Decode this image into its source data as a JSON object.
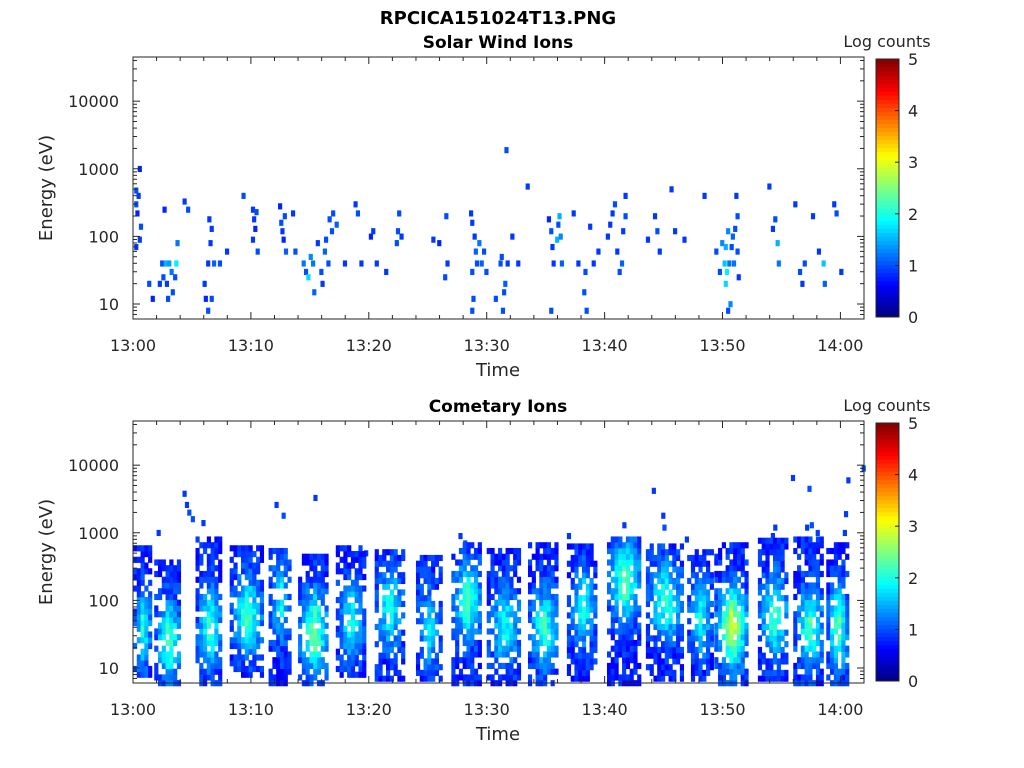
{
  "figure_title": "RPCICA151024T13.PNG",
  "colormap": "jet",
  "chart_data": [
    {
      "type": "heatmap",
      "title": "Solar Wind Ions",
      "xlabel": "Time",
      "ylabel": "Energy (eV)",
      "yscale": "log",
      "xlim": [
        "13:00",
        "14:02"
      ],
      "ylim": [
        6,
        45000
      ],
      "xticks": [
        "13:00",
        "13:10",
        "13:20",
        "13:30",
        "13:40",
        "13:50",
        "14:00"
      ],
      "yticks": [
        "10",
        "100",
        "1000",
        "10000"
      ],
      "colorbar": {
        "label": "Log counts",
        "range": [
          0,
          5
        ],
        "ticks": [
          "0",
          "1",
          "2",
          "3",
          "4",
          "5"
        ]
      },
      "cell_minutes": 0.32,
      "cells": [
        [
          0.1,
          480,
          1.0
        ],
        [
          0.1,
          300,
          1.0
        ],
        [
          0.2,
          220,
          0.8
        ],
        [
          0.3,
          400,
          0.9
        ],
        [
          0.4,
          1000,
          0.8
        ],
        [
          0.5,
          140,
          1.0
        ],
        [
          0.4,
          90,
          0.9
        ],
        [
          0.1,
          70,
          0.9
        ],
        [
          1.2,
          20,
          1.0
        ],
        [
          1.5,
          12,
          0.8
        ],
        [
          2.1,
          20,
          0.9
        ],
        [
          2.3,
          40,
          1.0
        ],
        [
          2.4,
          25,
          1.0
        ],
        [
          2.6,
          40,
          1.5
        ],
        [
          2.7,
          20,
          0.9
        ],
        [
          2.9,
          40,
          1.4
        ],
        [
          3.1,
          30,
          1.2
        ],
        [
          3.2,
          15,
          1.0
        ],
        [
          3.5,
          40,
          1.8
        ],
        [
          3.6,
          80,
          1.2
        ],
        [
          3.4,
          25,
          1.0
        ],
        [
          4.2,
          330,
          0.9
        ],
        [
          4.5,
          250,
          1.0
        ],
        [
          2.5,
          250,
          0.8
        ],
        [
          2.8,
          12,
          1.0
        ],
        [
          5.9,
          20,
          0.9
        ],
        [
          6.0,
          12,
          0.8
        ],
        [
          6.2,
          8,
          1.0
        ],
        [
          6.2,
          40,
          0.9
        ],
        [
          6.4,
          80,
          0.9
        ],
        [
          6.5,
          130,
          0.9
        ],
        [
          6.3,
          180,
          0.9
        ],
        [
          6.5,
          12,
          1.0
        ],
        [
          6.7,
          40,
          1.1
        ],
        [
          7.2,
          40,
          1.0
        ],
        [
          7.8,
          60,
          0.9
        ],
        [
          9.2,
          400,
          1.0
        ],
        [
          10.0,
          250,
          0.9
        ],
        [
          10.2,
          130,
          0.8
        ],
        [
          10.1,
          180,
          0.9
        ],
        [
          10.3,
          230,
          1.0
        ],
        [
          10.4,
          60,
          1.0
        ],
        [
          10.0,
          90,
          0.9
        ],
        [
          12.3,
          280,
          0.8
        ],
        [
          12.4,
          160,
          1.0
        ],
        [
          12.5,
          120,
          0.9
        ],
        [
          12.6,
          90,
          0.8
        ],
        [
          12.7,
          200,
          1.0
        ],
        [
          12.8,
          60,
          1.1
        ],
        [
          13.4,
          220,
          0.9
        ],
        [
          13.6,
          60,
          1.0
        ],
        [
          14.3,
          40,
          1.2
        ],
        [
          14.5,
          30,
          1.0
        ],
        [
          14.7,
          25,
          1.7
        ],
        [
          14.9,
          50,
          1.3
        ],
        [
          15.1,
          40,
          1.2
        ],
        [
          15.2,
          15,
          1.1
        ],
        [
          15.5,
          80,
          0.9
        ],
        [
          15.8,
          30,
          1.0
        ],
        [
          15.9,
          20,
          0.9
        ],
        [
          16.1,
          60,
          1.1
        ],
        [
          16.2,
          90,
          1.0
        ],
        [
          16.4,
          40,
          1.0
        ],
        [
          16.5,
          180,
          1.0
        ],
        [
          16.8,
          220,
          1.0
        ],
        [
          16.7,
          120,
          1.0
        ],
        [
          17.1,
          150,
          1.1
        ],
        [
          17.8,
          40,
          0.9
        ],
        [
          18.7,
          300,
          0.9
        ],
        [
          18.9,
          220,
          1.0
        ],
        [
          19.2,
          40,
          0.9
        ],
        [
          20.0,
          100,
          0.8
        ],
        [
          20.2,
          120,
          0.9
        ],
        [
          20.5,
          40,
          0.9
        ],
        [
          21.3,
          30,
          0.9
        ],
        [
          22.2,
          80,
          1.0
        ],
        [
          22.3,
          120,
          1.0
        ],
        [
          22.4,
          220,
          1.0
        ],
        [
          22.6,
          100,
          0.9
        ],
        [
          25.3,
          90,
          0.9
        ],
        [
          25.8,
          80,
          0.8
        ],
        [
          26.3,
          25,
          1.0
        ],
        [
          26.5,
          40,
          0.9
        ],
        [
          26.4,
          200,
          1.0
        ],
        [
          28.5,
          220,
          0.9
        ],
        [
          28.6,
          160,
          0.9
        ],
        [
          28.8,
          100,
          0.9
        ],
        [
          28.9,
          60,
          1.1
        ],
        [
          29.0,
          40,
          1.0
        ],
        [
          28.6,
          30,
          1.0
        ],
        [
          28.7,
          12,
          1.0
        ],
        [
          28.6,
          8,
          1.0
        ],
        [
          29.2,
          80,
          1.2
        ],
        [
          29.4,
          40,
          1.1
        ],
        [
          29.6,
          60,
          1.0
        ],
        [
          29.8,
          30,
          1.0
        ],
        [
          31.5,
          1900,
          1.0
        ],
        [
          31.1,
          50,
          1.0
        ],
        [
          30.6,
          12,
          1.0
        ],
        [
          31.2,
          8,
          1.0
        ],
        [
          31.3,
          15,
          1.0
        ],
        [
          31.4,
          20,
          1.1
        ],
        [
          31.0,
          40,
          1.0
        ],
        [
          31.6,
          40,
          0.9
        ],
        [
          32.0,
          100,
          0.9
        ],
        [
          32.5,
          40,
          0.9
        ],
        [
          33.3,
          550,
          0.9
        ],
        [
          35.1,
          180,
          0.8
        ],
        [
          35.3,
          120,
          1.0
        ],
        [
          35.4,
          70,
          0.9
        ],
        [
          35.5,
          40,
          0.9
        ],
        [
          35.3,
          8,
          1.0
        ],
        [
          35.8,
          90,
          1.5
        ],
        [
          35.9,
          150,
          1.0
        ],
        [
          36.0,
          200,
          1.5
        ],
        [
          36.1,
          100,
          1.3
        ],
        [
          36.2,
          40,
          1.1
        ],
        [
          37.2,
          220,
          0.9
        ],
        [
          37.6,
          40,
          0.9
        ],
        [
          38.2,
          30,
          1.0
        ],
        [
          38.1,
          15,
          1.0
        ],
        [
          38.3,
          8,
          1.0
        ],
        [
          38.6,
          140,
          0.9
        ],
        [
          38.9,
          40,
          0.9
        ],
        [
          39.3,
          60,
          0.9
        ],
        [
          40.1,
          100,
          0.9
        ],
        [
          40.3,
          150,
          0.9
        ],
        [
          40.5,
          220,
          0.9
        ],
        [
          40.7,
          300,
          1.0
        ],
        [
          40.9,
          60,
          0.9
        ],
        [
          41.1,
          30,
          1.0
        ],
        [
          41.4,
          120,
          0.9
        ],
        [
          41.6,
          200,
          1.0
        ],
        [
          41.6,
          400,
          0.9
        ],
        [
          41.3,
          40,
          1.1
        ],
        [
          43.5,
          90,
          0.9
        ],
        [
          44.1,
          200,
          0.9
        ],
        [
          44.3,
          120,
          1.0
        ],
        [
          44.5,
          60,
          0.9
        ],
        [
          45.5,
          500,
          0.9
        ],
        [
          45.8,
          120,
          0.9
        ],
        [
          46.6,
          90,
          0.9
        ],
        [
          48.3,
          400,
          0.9
        ],
        [
          49.3,
          60,
          1.0
        ],
        [
          49.6,
          30,
          1.0
        ],
        [
          49.8,
          80,
          1.3
        ],
        [
          50.0,
          40,
          1.6
        ],
        [
          50.1,
          20,
          1.7
        ],
        [
          50.1,
          70,
          1.5
        ],
        [
          50.2,
          30,
          1.8
        ],
        [
          50.3,
          120,
          1.3
        ],
        [
          50.4,
          40,
          1.2
        ],
        [
          50.5,
          10,
          1.3
        ],
        [
          50.3,
          8,
          1.0
        ],
        [
          50.6,
          70,
          1.0
        ],
        [
          50.7,
          100,
          1.1
        ],
        [
          50.8,
          40,
          1.2
        ],
        [
          50.9,
          130,
          1.0
        ],
        [
          51.0,
          400,
          0.9
        ],
        [
          51.1,
          200,
          1.0
        ],
        [
          51.1,
          60,
          1.0
        ],
        [
          51.2,
          25,
          0.9
        ],
        [
          53.8,
          550,
          0.9
        ],
        [
          54.1,
          130,
          0.9
        ],
        [
          54.3,
          180,
          1.0
        ],
        [
          54.5,
          80,
          1.5
        ],
        [
          54.6,
          40,
          1.2
        ],
        [
          56.0,
          300,
          0.9
        ],
        [
          56.4,
          30,
          1.0
        ],
        [
          56.6,
          20,
          0.9
        ],
        [
          56.8,
          40,
          1.0
        ],
        [
          57.5,
          200,
          0.9
        ],
        [
          58.0,
          60,
          0.9
        ],
        [
          58.4,
          40,
          1.6
        ],
        [
          58.5,
          20,
          1.1
        ],
        [
          59.3,
          300,
          0.9
        ],
        [
          59.5,
          220,
          1.0
        ],
        [
          59.9,
          30,
          0.9
        ]
      ]
    },
    {
      "type": "heatmap",
      "title": "Cometary Ions",
      "xlabel": "Time",
      "ylabel": "Energy (eV)",
      "yscale": "log",
      "xlim": [
        "13:00",
        "14:02"
      ],
      "ylim": [
        6,
        45000
      ],
      "xticks": [
        "13:00",
        "13:10",
        "13:20",
        "13:30",
        "13:40",
        "13:50",
        "14:00"
      ],
      "yticks": [
        "10",
        "100",
        "1000",
        "10000"
      ],
      "colorbar": {
        "label": "Log counts",
        "range": [
          0,
          5
        ],
        "ticks": [
          "0",
          "1",
          "2",
          "3",
          "4",
          "5"
        ]
      },
      "cell_minutes": 0.32,
      "bursts": [
        {
          "t": [
            0.0,
            1.4
          ],
          "emin": 8,
          "emax": 600,
          "peak": 2.1,
          "peak_e": 40
        },
        {
          "t": [
            1.8,
            4.0
          ],
          "emin": 6,
          "emax": 400,
          "peak": 2.4,
          "peak_e": 25
        },
        {
          "t": [
            5.3,
            7.5
          ],
          "emin": 6,
          "emax": 900,
          "peak": 2.2,
          "peak_e": 40
        },
        {
          "t": [
            8.2,
            10.9
          ],
          "emin": 8,
          "emax": 700,
          "peak": 2.3,
          "peak_e": 60
        },
        {
          "t": [
            11.5,
            13.2
          ],
          "emin": 6,
          "emax": 600,
          "peak": 2.0,
          "peak_e": 100
        },
        {
          "t": [
            14.0,
            16.5
          ],
          "emin": 6,
          "emax": 500,
          "peak": 2.6,
          "peak_e": 35
        },
        {
          "t": [
            17.2,
            19.5
          ],
          "emin": 8,
          "emax": 700,
          "peak": 2.0,
          "peak_e": 50
        },
        {
          "t": [
            20.5,
            22.8
          ],
          "emin": 7,
          "emax": 600,
          "peak": 2.1,
          "peak_e": 80
        },
        {
          "t": [
            24.0,
            26.0
          ],
          "emin": 7,
          "emax": 500,
          "peak": 1.8,
          "peak_e": 40
        },
        {
          "t": [
            27.0,
            29.5
          ],
          "emin": 6,
          "emax": 800,
          "peak": 2.3,
          "peak_e": 100
        },
        {
          "t": [
            30.0,
            32.8
          ],
          "emin": 6,
          "emax": 600,
          "peak": 2.0,
          "peak_e": 40
        },
        {
          "t": [
            33.5,
            36.0
          ],
          "emin": 6,
          "emax": 800,
          "peak": 2.2,
          "peak_e": 40
        },
        {
          "t": [
            36.8,
            39.2
          ],
          "emin": 7,
          "emax": 700,
          "peak": 2.0,
          "peak_e": 80
        },
        {
          "t": [
            40.2,
            43.0
          ],
          "emin": 6,
          "emax": 900,
          "peak": 2.5,
          "peak_e": 200
        },
        {
          "t": [
            43.5,
            46.5
          ],
          "emin": 7,
          "emax": 700,
          "peak": 2.2,
          "peak_e": 100
        },
        {
          "t": [
            47.0,
            49.0
          ],
          "emin": 7,
          "emax": 600,
          "peak": 2.0,
          "peak_e": 60
        },
        {
          "t": [
            49.3,
            52.0
          ],
          "emin": 6,
          "emax": 700,
          "peak": 3.1,
          "peak_e": 40
        },
        {
          "t": [
            53.0,
            55.5
          ],
          "emin": 7,
          "emax": 800,
          "peak": 2.3,
          "peak_e": 60
        },
        {
          "t": [
            56.0,
            58.5
          ],
          "emin": 6,
          "emax": 900,
          "peak": 2.3,
          "peak_e": 40
        },
        {
          "t": [
            58.8,
            60.5
          ],
          "emin": 6,
          "emax": 700,
          "peak": 2.6,
          "peak_e": 40
        }
      ],
      "sparse_cells": [
        [
          4.2,
          3800,
          0.9
        ],
        [
          4.4,
          2600,
          0.9
        ],
        [
          4.6,
          2000,
          1.0
        ],
        [
          4.9,
          1600,
          1.0
        ],
        [
          5.8,
          1400,
          0.9
        ],
        [
          2.0,
          1000,
          0.9
        ],
        [
          12.0,
          2600,
          0.9
        ],
        [
          12.6,
          1800,
          1.0
        ],
        [
          15.3,
          3300,
          0.9
        ],
        [
          19.6,
          500,
          0.9
        ],
        [
          27.6,
          900,
          0.9
        ],
        [
          28.0,
          700,
          1.0
        ],
        [
          36.8,
          900,
          0.9
        ],
        [
          44.0,
          4200,
          0.9
        ],
        [
          44.8,
          1800,
          0.9
        ],
        [
          44.9,
          1200,
          1.0
        ],
        [
          41.5,
          1300,
          0.9
        ],
        [
          46.8,
          800,
          0.9
        ],
        [
          54.1,
          900,
          0.9
        ],
        [
          54.3,
          1200,
          0.9
        ],
        [
          55.8,
          6500,
          0.9
        ],
        [
          57.2,
          4500,
          1.0
        ],
        [
          57.0,
          1200,
          0.9
        ],
        [
          57.4,
          1300,
          1.0
        ],
        [
          57.9,
          1000,
          0.9
        ],
        [
          60.3,
          1900,
          0.9
        ],
        [
          60.5,
          6000,
          0.9
        ],
        [
          61.8,
          9000,
          1.0
        ],
        [
          60.2,
          1000,
          0.9
        ]
      ]
    }
  ]
}
